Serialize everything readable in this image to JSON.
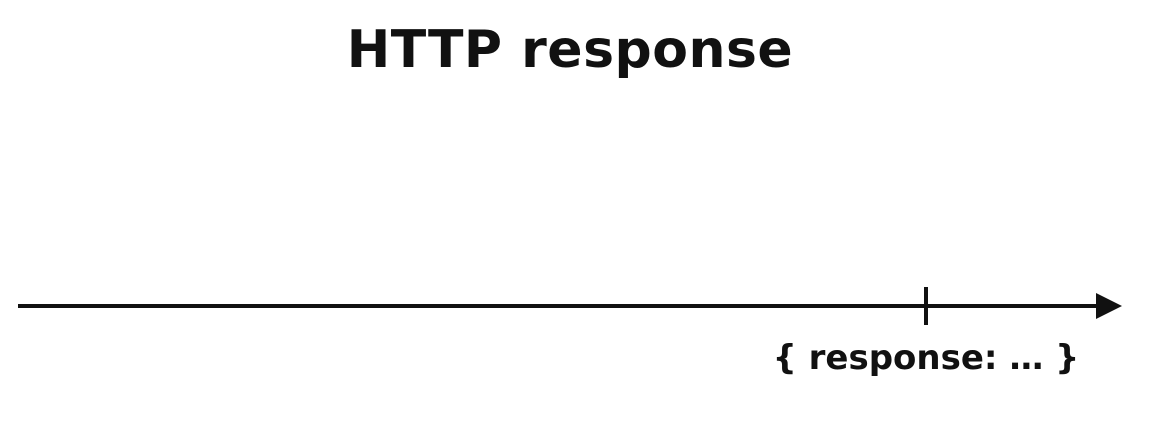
{
  "title": "HTTP response",
  "timeline": {
    "event_label": "{ response: … }"
  }
}
